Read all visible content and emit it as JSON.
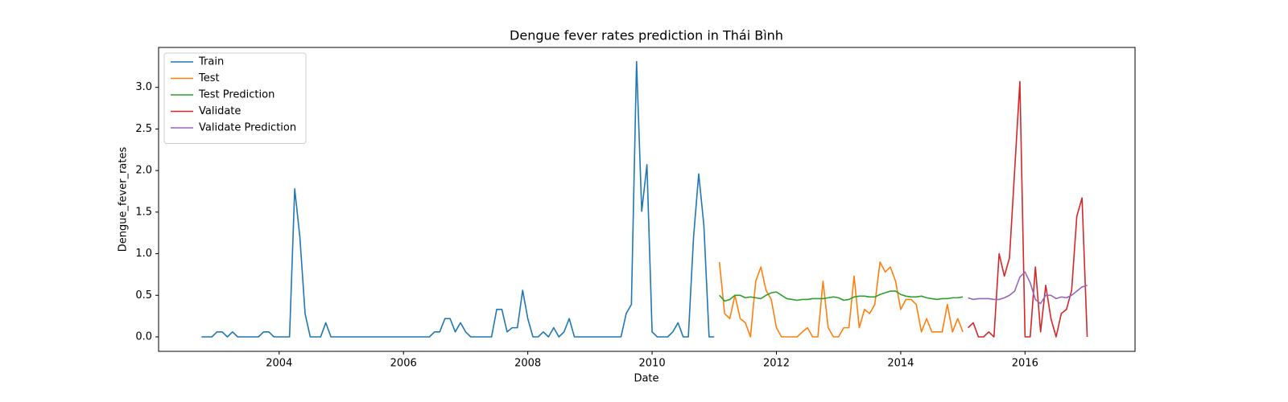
{
  "chart_data": {
    "type": "line",
    "title": "Dengue fever rates prediction in Thái Bình",
    "x_label": "Date",
    "y_label": "Dengue_fever_rates",
    "xlim": [
      2002.06,
      2017.77
    ],
    "ylim": [
      -0.174,
      3.48
    ],
    "xticks": [
      2004,
      2006,
      2008,
      2010,
      2012,
      2014,
      2016
    ],
    "yticks": [
      {
        "value": 0,
        "label": "0.0"
      },
      0.5,
      {
        "value": 1,
        "label": "1.0"
      },
      1.5,
      {
        "value": 2,
        "label": "2.0"
      },
      2.5,
      {
        "value": 3,
        "label": "3.0"
      }
    ],
    "legend": "upper left",
    "grid": false,
    "series": [
      {
        "name": "Train",
        "color": "#1f77b4",
        "x": [
          2002.75,
          2002.833,
          2002.917,
          2003,
          2003.083,
          2003.167,
          2003.25,
          2003.333,
          2003.417,
          2003.5,
          2003.583,
          2003.667,
          2003.75,
          2003.833,
          2003.917,
          2004,
          2004.083,
          2004.167,
          2004.25,
          2004.333,
          2004.417,
          2004.5,
          2004.583,
          2004.667,
          2004.75,
          2004.833,
          2004.917,
          2005,
          2005.083,
          2005.167,
          2005.25,
          2005.333,
          2005.417,
          2005.5,
          2005.583,
          2005.667,
          2005.75,
          2005.833,
          2005.917,
          2006,
          2006.083,
          2006.167,
          2006.25,
          2006.333,
          2006.417,
          2006.5,
          2006.583,
          2006.667,
          2006.75,
          2006.833,
          2006.917,
          2007,
          2007.083,
          2007.167,
          2007.25,
          2007.333,
          2007.417,
          2007.5,
          2007.583,
          2007.667,
          2007.75,
          2007.833,
          2007.917,
          2008,
          2008.083,
          2008.167,
          2008.25,
          2008.333,
          2008.417,
          2008.5,
          2008.583,
          2008.667,
          2008.75,
          2008.833,
          2008.917,
          2009,
          2009.083,
          2009.167,
          2009.25,
          2009.333,
          2009.417,
          2009.5,
          2009.583,
          2009.667,
          2009.75,
          2009.833,
          2009.917,
          2010,
          2010.083,
          2010.167,
          2010.25,
          2010.333,
          2010.417,
          2010.5,
          2010.583,
          2010.667,
          2010.75,
          2010.833,
          2010.917,
          2011
        ],
        "values": [
          0,
          0,
          0,
          0.06,
          0.06,
          0,
          0.06,
          0,
          0,
          0,
          0,
          0,
          0.06,
          0.06,
          0,
          0,
          0,
          0,
          1.78,
          1.2,
          0.28,
          0,
          0,
          0,
          0.17,
          0,
          0,
          0,
          0,
          0,
          0,
          0,
          0,
          0,
          0,
          0,
          0,
          0,
          0,
          0,
          0,
          0,
          0,
          0,
          0,
          0.06,
          0.06,
          0.22,
          0.22,
          0.06,
          0.17,
          0.06,
          0,
          0,
          0,
          0,
          0,
          0.33,
          0.33,
          0.06,
          0.11,
          0.11,
          0.56,
          0.22,
          0,
          0,
          0.06,
          0,
          0.11,
          0,
          0.06,
          0.22,
          0,
          0,
          0,
          0,
          0,
          0,
          0,
          0,
          0,
          0,
          0.28,
          0.39,
          3.31,
          1.51,
          2.07,
          0.06,
          0,
          0,
          0,
          0.06,
          0.17,
          0,
          0,
          1.2,
          1.96,
          1.34,
          0,
          0
        ]
      },
      {
        "name": "Test",
        "color": "#ff7f0e",
        "x": [
          2011.083,
          2011.167,
          2011.25,
          2011.333,
          2011.417,
          2011.5,
          2011.583,
          2011.667,
          2011.75,
          2011.833,
          2011.917,
          2012,
          2012.083,
          2012.167,
          2012.25,
          2012.333,
          2012.417,
          2012.5,
          2012.583,
          2012.667,
          2012.75,
          2012.833,
          2012.917,
          2013,
          2013.083,
          2013.167,
          2013.25,
          2013.333,
          2013.417,
          2013.5,
          2013.583,
          2013.667,
          2013.75,
          2013.833,
          2013.917,
          2014,
          2014.083,
          2014.167,
          2014.25,
          2014.333,
          2014.417,
          2014.5,
          2014.583,
          2014.667,
          2014.75,
          2014.833,
          2014.917,
          2015
        ],
        "values": [
          0.9,
          0.28,
          0.22,
          0.5,
          0.22,
          0.17,
          0,
          0.67,
          0.84,
          0.56,
          0.45,
          0.11,
          0,
          0,
          0,
          0,
          0.06,
          0.11,
          0,
          0,
          0.67,
          0.11,
          0,
          0,
          0.11,
          0.11,
          0.73,
          0.11,
          0.33,
          0.28,
          0.39,
          0.9,
          0.78,
          0.84,
          0.67,
          0.33,
          0.45,
          0.45,
          0.39,
          0.06,
          0.22,
          0.06,
          0.06,
          0.06,
          0.39,
          0.06,
          0.22,
          0.06
        ]
      },
      {
        "name": "Test Prediction",
        "color": "#2ca02c",
        "x": [
          2011.083,
          2011.167,
          2011.25,
          2011.333,
          2011.417,
          2011.5,
          2011.583,
          2011.667,
          2011.75,
          2011.833,
          2011.917,
          2012,
          2012.083,
          2012.167,
          2012.25,
          2012.333,
          2012.417,
          2012.5,
          2012.583,
          2012.667,
          2012.75,
          2012.833,
          2012.917,
          2013,
          2013.083,
          2013.167,
          2013.25,
          2013.333,
          2013.417,
          2013.5,
          2013.583,
          2013.667,
          2013.75,
          2013.833,
          2013.917,
          2014,
          2014.083,
          2014.167,
          2014.25,
          2014.333,
          2014.417,
          2014.5,
          2014.583,
          2014.667,
          2014.75,
          2014.833,
          2014.917,
          2015
        ],
        "values": [
          0.5,
          0.43,
          0.45,
          0.5,
          0.5,
          0.47,
          0.48,
          0.47,
          0.46,
          0.5,
          0.53,
          0.54,
          0.5,
          0.46,
          0.45,
          0.44,
          0.45,
          0.45,
          0.46,
          0.46,
          0.46,
          0.47,
          0.48,
          0.47,
          0.44,
          0.45,
          0.48,
          0.49,
          0.49,
          0.48,
          0.48,
          0.51,
          0.53,
          0.55,
          0.55,
          0.51,
          0.49,
          0.48,
          0.48,
          0.49,
          0.47,
          0.46,
          0.45,
          0.46,
          0.46,
          0.47,
          0.47,
          0.48
        ]
      },
      {
        "name": "Validate",
        "color": "#d62728",
        "x": [
          2015.083,
          2015.167,
          2015.25,
          2015.333,
          2015.417,
          2015.5,
          2015.583,
          2015.667,
          2015.75,
          2015.833,
          2015.917,
          2016,
          2016.083,
          2016.167,
          2016.25,
          2016.333,
          2016.417,
          2016.5,
          2016.583,
          2016.667,
          2016.75,
          2016.833,
          2016.917,
          2017
        ],
        "values": [
          0.11,
          0.17,
          0,
          0,
          0.06,
          0,
          1.0,
          0.73,
          0.95,
          2.0,
          3.07,
          0,
          0,
          0.84,
          0.06,
          0.62,
          0.22,
          0,
          0.28,
          0.33,
          0.56,
          1.45,
          1.67,
          0
        ]
      },
      {
        "name": "Validate Prediction",
        "color": "#9467bd",
        "x": [
          2015.083,
          2015.167,
          2015.25,
          2015.333,
          2015.417,
          2015.5,
          2015.583,
          2015.667,
          2015.75,
          2015.833,
          2015.917,
          2016,
          2016.083,
          2016.167,
          2016.25,
          2016.333,
          2016.417,
          2016.5,
          2016.583,
          2016.667,
          2016.75,
          2016.833,
          2016.917,
          2017
        ],
        "values": [
          0.47,
          0.45,
          0.46,
          0.46,
          0.46,
          0.45,
          0.45,
          0.47,
          0.5,
          0.55,
          0.72,
          0.78,
          0.65,
          0.45,
          0.4,
          0.5,
          0.5,
          0.46,
          0.48,
          0.47,
          0.5,
          0.55,
          0.6,
          0.62
        ]
      }
    ]
  }
}
